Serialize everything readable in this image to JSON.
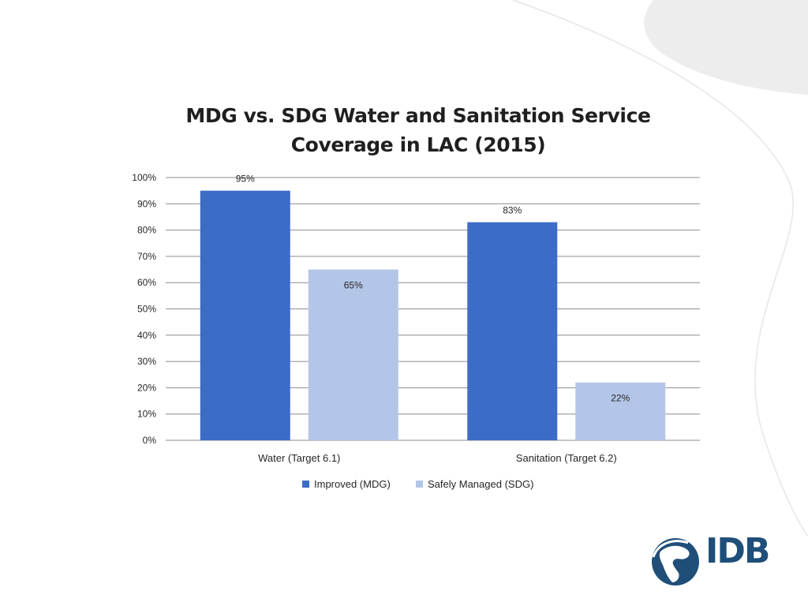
{
  "colors": {
    "improved": "#3d6cc7",
    "safely_managed": "#b4c6e7",
    "logo": "#1f4e79",
    "gridline": "#8c8c8c",
    "text": "#262626"
  },
  "chart_data": {
    "type": "bar",
    "title": [
      "MDG vs. SDG Water and Sanitation Service",
      "Coverage in LAC (2015)"
    ],
    "categories": [
      "Water (Target 6.1)",
      "Sanitation (Target 6.2)"
    ],
    "series": [
      {
        "name": "Improved (MDG)",
        "values": [
          95,
          83
        ],
        "labels": [
          "95%",
          "83%"
        ],
        "color": "#3d6cc7"
      },
      {
        "name": "Safely Managed (SDG)",
        "values": [
          65,
          22
        ],
        "labels": [
          "65%",
          "22%"
        ],
        "color": "#b4c6e7"
      }
    ],
    "ylim": [
      0,
      100
    ],
    "yticks": [
      "0%",
      "10%",
      "20%",
      "30%",
      "40%",
      "50%",
      "60%",
      "70%",
      "80%",
      "90%",
      "100%"
    ],
    "grid": true,
    "legend_position": "bottom"
  },
  "logo": {
    "text": "IDB",
    "icon": "idb-globe-icon"
  }
}
